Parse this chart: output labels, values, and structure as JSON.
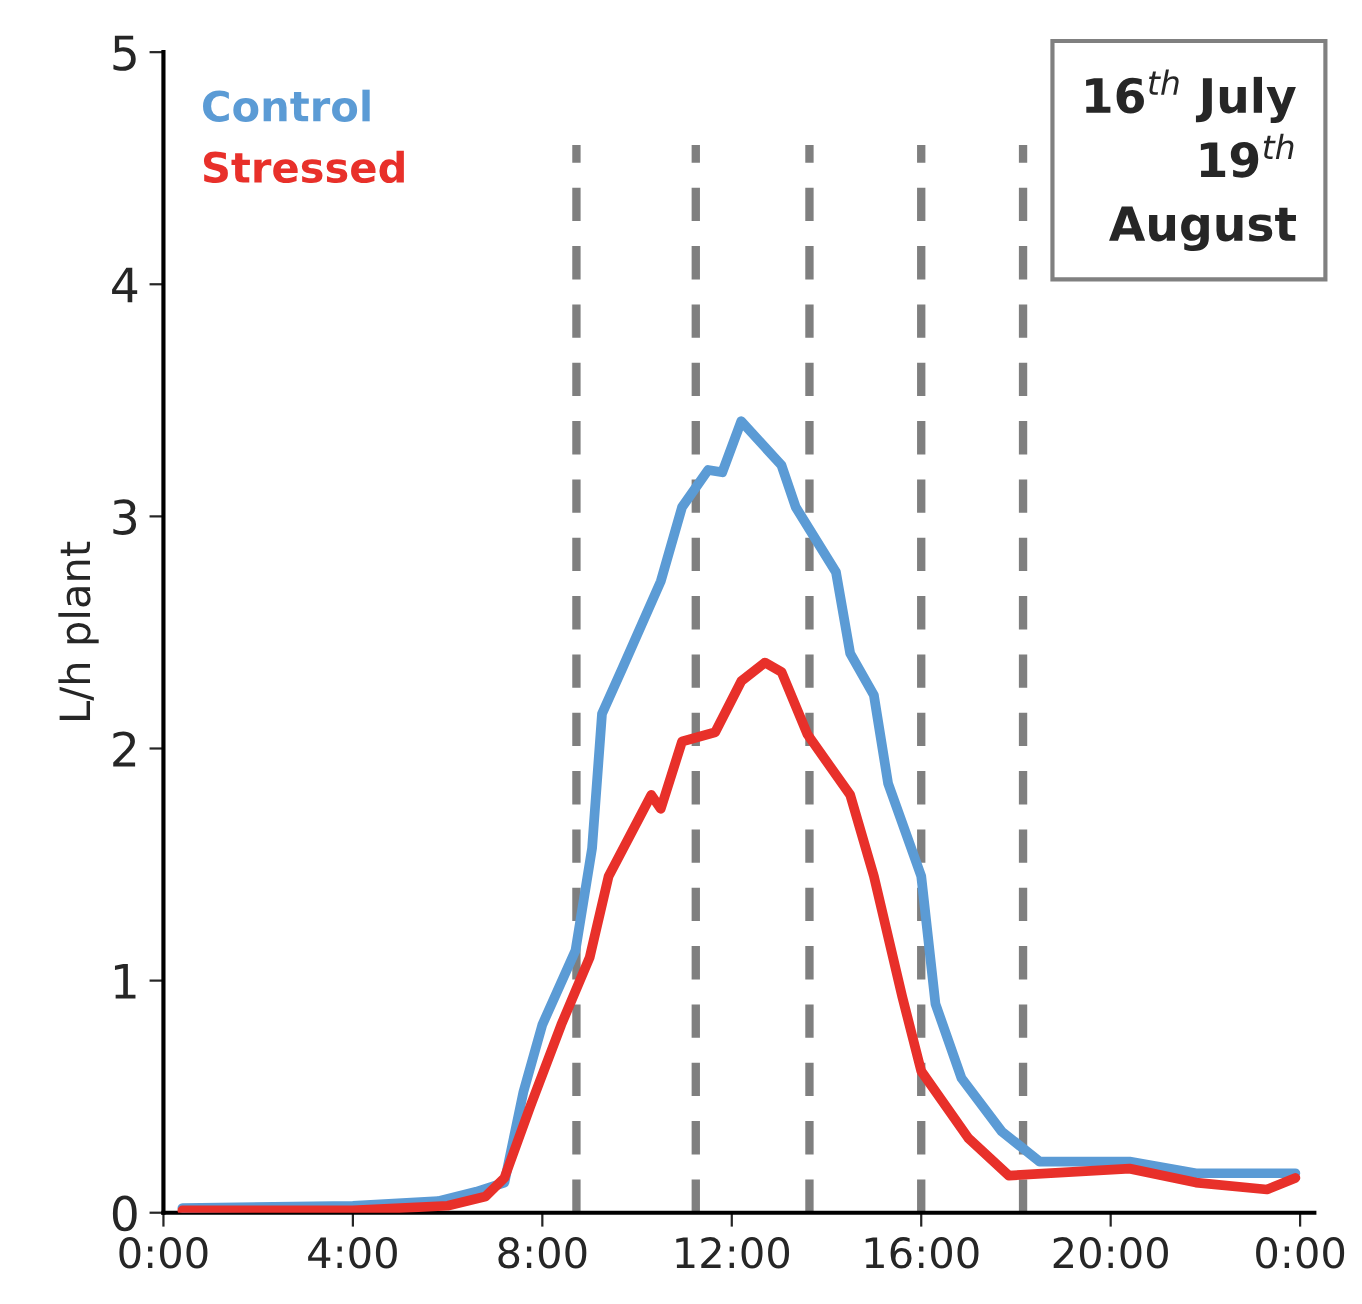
{
  "chart_data": {
    "type": "line",
    "ylabel": "L/h plant",
    "x": [
      0.4,
      4,
      5.8,
      6.6,
      7.2,
      7.6,
      8.0,
      8.7,
      9.05,
      9.26,
      9.7,
      10.5,
      10.95,
      11.5,
      11.8,
      12.2,
      13.05,
      13.35,
      14.2,
      14.5,
      15.0,
      15.3,
      16.0,
      16.3,
      16.85,
      17.7,
      18.5,
      20.4,
      21.8,
      23.9
    ],
    "series": [
      {
        "name": "Control",
        "color": "#5b9bd5",
        "values": [
          0.02,
          0.03,
          0.05,
          0.09,
          0.13,
          0.52,
          0.81,
          1.13,
          1.57,
          2.15,
          2.35,
          2.72,
          3.04,
          3.2,
          3.19,
          3.41,
          3.22,
          3.04,
          2.76,
          2.41,
          2.23,
          1.85,
          1.45,
          0.9,
          0.58,
          0.35,
          0.22,
          0.22,
          0.17,
          0.17
        ]
      },
      {
        "name": "Stressed",
        "color": "#e8302a",
        "x": [
          0.4,
          4,
          6,
          6.8,
          7.2,
          7.75,
          8.4,
          9.0,
          9.4,
          10.3,
          10.5,
          10.95,
          11.65,
          12.2,
          12.7,
          13.05,
          13.6,
          14.5,
          15.0,
          15.6,
          16.0,
          17.0,
          17.85,
          20.4,
          21.8,
          23.3,
          23.9
        ],
        "values": [
          0.01,
          0.01,
          0.03,
          0.07,
          0.15,
          0.46,
          0.81,
          1.1,
          1.45,
          1.8,
          1.74,
          2.03,
          2.07,
          2.29,
          2.37,
          2.33,
          2.06,
          1.8,
          1.45,
          0.93,
          0.61,
          0.32,
          0.16,
          0.19,
          0.13,
          0.1,
          0.15
        ]
      }
    ],
    "xlim": [
      0,
      24.3
    ],
    "ylim": [
      0,
      5
    ],
    "xticks": [
      {
        "value": 0,
        "label": "0:00"
      },
      {
        "value": 4,
        "label": "4:00"
      },
      {
        "value": 8,
        "label": "8:00"
      },
      {
        "value": 12,
        "label": "12:00"
      },
      {
        "value": 16,
        "label": "16:00"
      },
      {
        "value": 20,
        "label": "20:00"
      },
      {
        "value": 24,
        "label": "0:00"
      }
    ],
    "yticks": [
      0,
      1,
      2,
      3,
      4,
      5
    ],
    "ref_lines": [
      {
        "axis": "x",
        "value": 8.72,
        "color": "#7f7f7f",
        "line_style": "dashed"
      },
      {
        "axis": "x",
        "value": 11.24,
        "color": "#7f7f7f",
        "line_style": "dashed"
      },
      {
        "axis": "x",
        "value": 13.64,
        "color": "#7f7f7f",
        "line_style": "dashed"
      },
      {
        "axis": "x",
        "value": 16.0,
        "color": "#7f7f7f",
        "line_style": "dashed"
      },
      {
        "axis": "x",
        "value": 18.15,
        "color": "#7f7f7f",
        "line_style": "dashed"
      }
    ],
    "annotations": [
      "16$^{th}$ July\n19$^{th}$\nAugust"
    ],
    "legend": "top left",
    "grid": false,
    "line_style": "solid",
    "marker": "none"
  }
}
